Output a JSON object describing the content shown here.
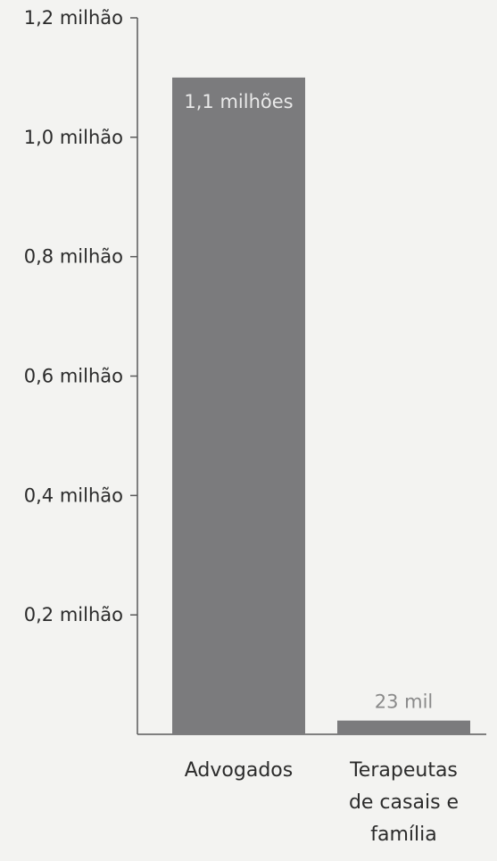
{
  "chart_data": {
    "type": "bar",
    "categories": [
      "Advogados",
      "Terapeutas de casais e família"
    ],
    "category_label_lines": [
      [
        "Advogados"
      ],
      [
        "Terapeutas",
        "de casais e",
        "família"
      ]
    ],
    "values": [
      1100000,
      23000
    ],
    "data_labels": [
      "1,1 milhões",
      "23 mil"
    ],
    "y_ticks": [
      0.2,
      0.4,
      0.6,
      0.8,
      1.0,
      1.2
    ],
    "y_tick_labels": [
      "0,2 milhão",
      "0,4 milhão",
      "0,6 milhão",
      "0,8 milhão",
      "1,0 milhão",
      "1,2 milhão"
    ],
    "ylim": [
      0,
      1200000
    ],
    "title": "",
    "xlabel": "",
    "ylabel": "",
    "grid": false,
    "colors": {
      "bar": "#7b7b7d",
      "axis": "#5a5a5a",
      "background": "#f3f3f1"
    }
  }
}
